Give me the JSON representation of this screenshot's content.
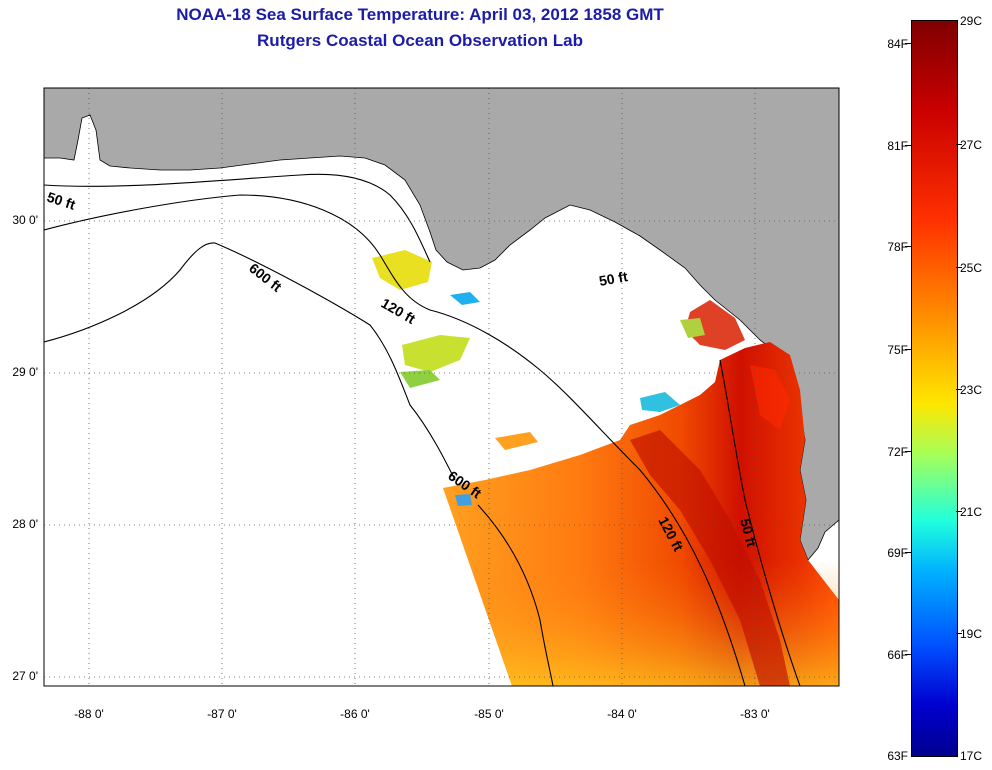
{
  "title": {
    "line1": "NOAA-18 Sea Surface Temperature:  April 03, 2012 1858 GMT",
    "line2": "Rutgers Coastal Ocean Observation Lab"
  },
  "axes": {
    "latitude_labels": [
      "30 0'",
      "29 0'",
      "28 0'",
      "27 0'"
    ],
    "longitude_labels": [
      "-88 0'",
      "-87 0'",
      "-86 0'",
      "-85 0'",
      "-84 0'",
      "-83 0'"
    ]
  },
  "contours": [
    {
      "label": "50 ft"
    },
    {
      "label": "600 ft"
    },
    {
      "label": "120 ft"
    },
    {
      "label": "50 ft"
    },
    {
      "label": "600 ft"
    },
    {
      "label": "120 ft"
    },
    {
      "label": "50 ft"
    }
  ],
  "colorbar": {
    "fahrenheit_labels": [
      "84F",
      "81F",
      "78F",
      "75F",
      "72F",
      "69F",
      "66F",
      "63F"
    ],
    "celsius_labels": [
      "29C",
      "27C",
      "25C",
      "23C",
      "21C",
      "19C",
      "17C"
    ]
  },
  "colors": {
    "land": "#a9a9a9",
    "no_data": "#ffffff",
    "title_text": "#1c1ca8",
    "sst_hot": "#c80000",
    "sst_warm": "#ff6a00",
    "sst_mild": "#ffc000"
  }
}
